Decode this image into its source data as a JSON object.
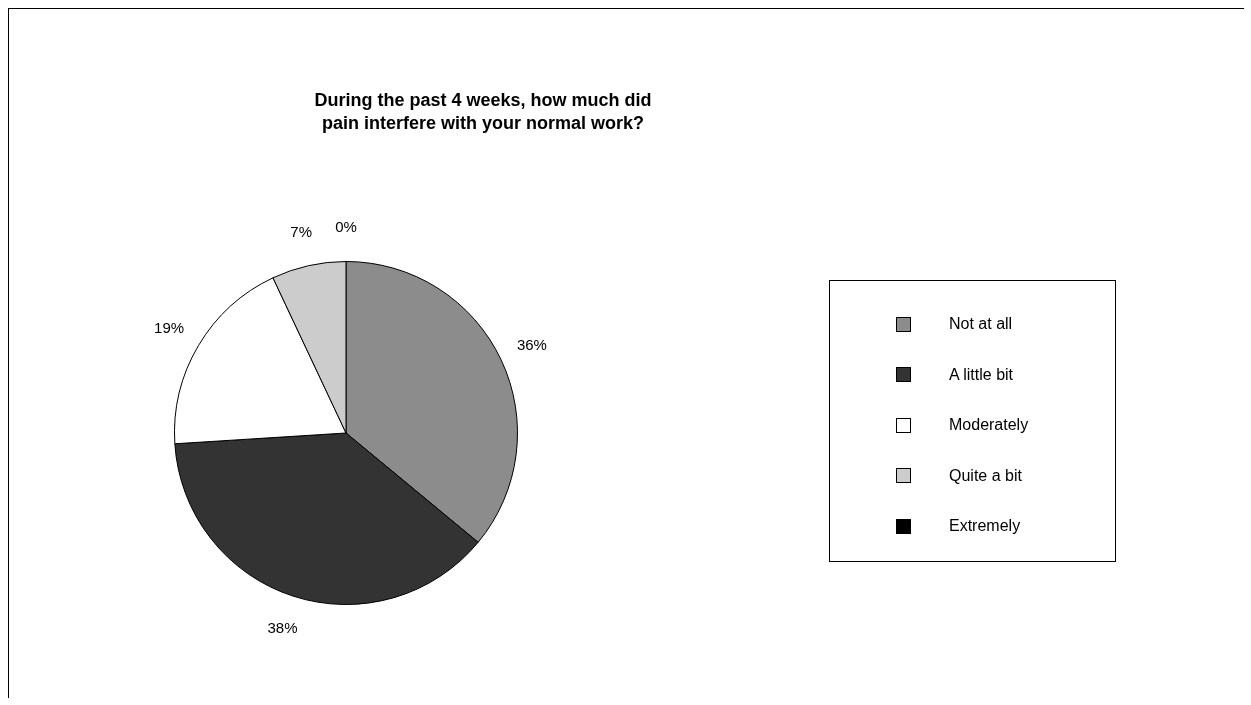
{
  "chart_data": {
    "type": "pie",
    "title": "During the past 4 weeks, how much did pain interfere with your normal work?",
    "categories": [
      "Not at all",
      "A little bit",
      "Moderately",
      "Quite a bit",
      "Extremely"
    ],
    "values": [
      36,
      38,
      19,
      7,
      0
    ],
    "colors": [
      "#8c8c8c",
      "#333333",
      "#ffffff",
      "#cccccc",
      "#000000"
    ],
    "value_labels": [
      "36%",
      "38%",
      "19%",
      "7%",
      "0%"
    ],
    "legend": "right"
  }
}
